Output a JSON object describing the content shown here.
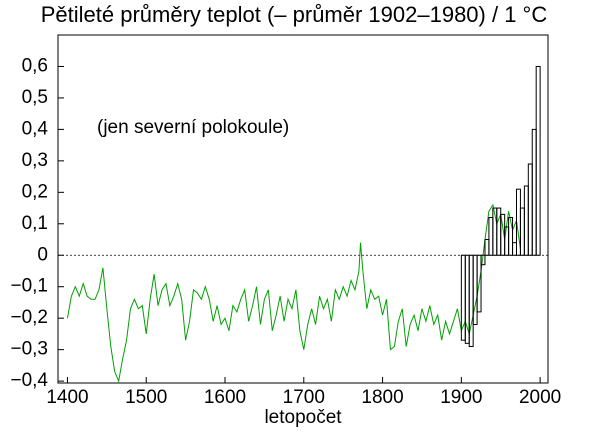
{
  "chart_data": {
    "type": "line",
    "title": "Pětileté průměry teplot (– průměr 1902–1980) / 1 °C",
    "annotation": "(jen severní polokoule)",
    "xlabel": "letopočet",
    "xlim": [
      1388,
      2010
    ],
    "ylim": [
      -0.406,
      0.7
    ],
    "xticks": [
      1400,
      1500,
      1600,
      1700,
      1800,
      1900,
      2000
    ],
    "yticks": [
      {
        "value": -0.4,
        "label": "−0,4"
      },
      {
        "value": -0.3,
        "label": "−0,3"
      },
      {
        "value": -0.2,
        "label": "−0,2"
      },
      {
        "value": -0.1,
        "label": "−0,1"
      },
      0,
      {
        "value": 0.1,
        "label": "0,1"
      },
      {
        "value": 0.2,
        "label": "0,2"
      },
      {
        "value": 0.3,
        "label": "0,3"
      },
      {
        "value": 0.4,
        "label": "0,4"
      },
      {
        "value": 0.5,
        "label": "0,5"
      },
      {
        "value": 0.6,
        "label": "0,6"
      }
    ],
    "zero_line": true,
    "series": [
      {
        "type": "line",
        "color": "#00a000",
        "x": [
          1400,
          1405,
          1410,
          1415,
          1420,
          1425,
          1430,
          1435,
          1440,
          1445,
          1450,
          1455,
          1460,
          1465,
          1470,
          1475,
          1480,
          1485,
          1490,
          1495,
          1500,
          1505,
          1510,
          1515,
          1520,
          1525,
          1530,
          1535,
          1540,
          1545,
          1550,
          1555,
          1560,
          1565,
          1570,
          1575,
          1580,
          1585,
          1590,
          1595,
          1600,
          1605,
          1610,
          1615,
          1620,
          1625,
          1630,
          1635,
          1640,
          1645,
          1650,
          1655,
          1660,
          1665,
          1670,
          1675,
          1680,
          1685,
          1690,
          1695,
          1700,
          1705,
          1710,
          1715,
          1720,
          1725,
          1730,
          1735,
          1740,
          1745,
          1750,
          1755,
          1760,
          1765,
          1770,
          1772,
          1775,
          1780,
          1785,
          1790,
          1795,
          1800,
          1805,
          1810,
          1815,
          1820,
          1825,
          1830,
          1835,
          1840,
          1845,
          1850,
          1855,
          1860,
          1865,
          1870,
          1875,
          1880,
          1885,
          1890,
          1895,
          1900,
          1905,
          1910,
          1915,
          1920,
          1925,
          1930,
          1935,
          1940,
          1945,
          1950,
          1955,
          1960,
          1965,
          1970,
          1975
        ],
        "values": [
          -0.2,
          -0.13,
          -0.1,
          -0.13,
          -0.09,
          -0.13,
          -0.14,
          -0.14,
          -0.11,
          -0.04,
          -0.17,
          -0.29,
          -0.37,
          -0.4,
          -0.33,
          -0.27,
          -0.17,
          -0.14,
          -0.17,
          -0.16,
          -0.25,
          -0.14,
          -0.06,
          -0.16,
          -0.11,
          -0.09,
          -0.16,
          -0.13,
          -0.09,
          -0.14,
          -0.27,
          -0.21,
          -0.11,
          -0.12,
          -0.14,
          -0.1,
          -0.14,
          -0.21,
          -0.16,
          -0.22,
          -0.2,
          -0.24,
          -0.16,
          -0.18,
          -0.14,
          -0.11,
          -0.21,
          -0.16,
          -0.1,
          -0.22,
          -0.14,
          -0.11,
          -0.24,
          -0.19,
          -0.13,
          -0.21,
          -0.14,
          -0.17,
          -0.11,
          -0.24,
          -0.3,
          -0.22,
          -0.17,
          -0.22,
          -0.13,
          -0.17,
          -0.14,
          -0.21,
          -0.11,
          -0.14,
          -0.1,
          -0.13,
          -0.08,
          -0.11,
          -0.05,
          0.04,
          -0.05,
          -0.17,
          -0.11,
          -0.14,
          -0.13,
          -0.19,
          -0.14,
          -0.3,
          -0.29,
          -0.21,
          -0.17,
          -0.29,
          -0.22,
          -0.19,
          -0.24,
          -0.17,
          -0.21,
          -0.16,
          -0.22,
          -0.19,
          -0.27,
          -0.21,
          -0.25,
          -0.21,
          -0.17,
          -0.24,
          -0.21,
          -0.25,
          -0.19,
          -0.13,
          -0.05,
          0.05,
          0.14,
          0.16,
          0.1,
          0.13,
          0.05,
          0.14,
          0.08,
          0.11,
          0.02
        ]
      },
      {
        "type": "bar",
        "color": "#000000",
        "bins": [
          1900,
          1905,
          1910,
          1915,
          1920,
          1925,
          1930,
          1935,
          1940,
          1945,
          1950,
          1955,
          1960,
          1965,
          1970,
          1975,
          1980,
          1985,
          1990,
          1995,
          2000
        ],
        "values": [
          -0.27,
          -0.28,
          -0.29,
          -0.22,
          -0.18,
          -0.03,
          0.05,
          0.12,
          0.15,
          0.15,
          0.13,
          0.09,
          0.12,
          0.04,
          0.21,
          0.15,
          0.22,
          0.29,
          0.4,
          0.6
        ]
      }
    ]
  }
}
